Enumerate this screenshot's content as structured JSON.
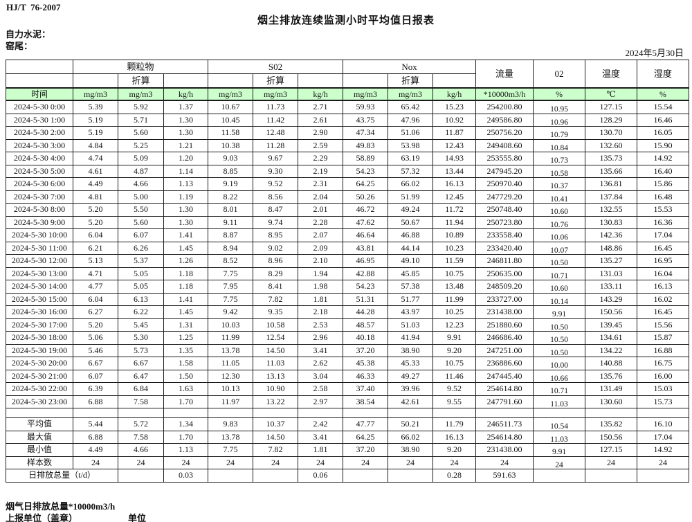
{
  "page": {
    "standard_code": "HJ/T  76-2007",
    "title": "烟尘排放连续监测小时平均值日报表",
    "company": "自力水泥：",
    "station": "窑尾：",
    "date": "2024年5月30日"
  },
  "table": {
    "header": {
      "time": "时间",
      "groups": [
        {
          "name": "颗粒物",
          "sub": "折算",
          "units": [
            "mg/m3",
            "mg/m3",
            "kg/h"
          ]
        },
        {
          "name": "S02",
          "sub": "折算",
          "units": [
            "mg/m3",
            "mg/m3",
            "kg/h"
          ]
        },
        {
          "name": "Nox",
          "sub": "折算",
          "units": [
            "mg/m3",
            "mg/m3",
            "kg/h"
          ]
        }
      ],
      "flow": {
        "name": "流量",
        "unit": "*10000m3/h"
      },
      "o2": {
        "name": "02",
        "unit": "%"
      },
      "temperature": {
        "name": "温度",
        "unit": "℃"
      },
      "humidity": {
        "name": "湿度",
        "unit": "%"
      }
    },
    "rows": [
      {
        "time": "2024-5-30 0:00",
        "values": [
          "5.39",
          "5.92",
          "1.37",
          "10.67",
          "11.73",
          "2.71",
          "59.93",
          "65.42",
          "15.23",
          "254200.80",
          "10.95",
          "127.15",
          "15.54"
        ]
      },
      {
        "time": "2024-5-30 1:00",
        "values": [
          "5.19",
          "5.71",
          "1.30",
          "10.45",
          "11.42",
          "2.61",
          "43.75",
          "47.96",
          "10.92",
          "249586.80",
          "10.96",
          "128.29",
          "16.46"
        ]
      },
      {
        "time": "2024-5-30 2:00",
        "values": [
          "5.19",
          "5.60",
          "1.30",
          "11.58",
          "12.48",
          "2.90",
          "47.34",
          "51.06",
          "11.87",
          "250756.20",
          "10.79",
          "130.70",
          "16.05"
        ]
      },
      {
        "time": "2024-5-30 3:00",
        "values": [
          "4.84",
          "5.25",
          "1.21",
          "10.38",
          "11.28",
          "2.59",
          "49.83",
          "53.98",
          "12.43",
          "249408.60",
          "10.84",
          "132.60",
          "15.90"
        ]
      },
      {
        "time": "2024-5-30 4:00",
        "values": [
          "4.74",
          "5.09",
          "1.20",
          "9.03",
          "9.67",
          "2.29",
          "58.89",
          "63.19",
          "14.93",
          "253555.80",
          "10.73",
          "135.73",
          "14.92"
        ]
      },
      {
        "time": "2024-5-30 5:00",
        "values": [
          "4.61",
          "4.87",
          "1.14",
          "8.85",
          "9.30",
          "2.19",
          "54.23",
          "57.32",
          "13.44",
          "247945.20",
          "10.58",
          "135.66",
          "16.40"
        ]
      },
      {
        "time": "2024-5-30 6:00",
        "values": [
          "4.49",
          "4.66",
          "1.13",
          "9.19",
          "9.52",
          "2.31",
          "64.25",
          "66.02",
          "16.13",
          "250970.40",
          "10.37",
          "136.81",
          "15.86"
        ]
      },
      {
        "time": "2024-5-30 7:00",
        "values": [
          "4.81",
          "5.00",
          "1.19",
          "8.22",
          "8.56",
          "2.04",
          "50.26",
          "51.99",
          "12.45",
          "247729.20",
          "10.41",
          "137.84",
          "16.48"
        ]
      },
      {
        "time": "2024-5-30 8:00",
        "values": [
          "5.20",
          "5.50",
          "1.30",
          "8.01",
          "8.47",
          "2.01",
          "46.72",
          "49.24",
          "11.72",
          "250748.40",
          "10.60",
          "132.55",
          "15.53"
        ]
      },
      {
        "time": "2024-5-30 9:00",
        "values": [
          "5.20",
          "5.60",
          "1.30",
          "9.11",
          "9.74",
          "2.28",
          "47.62",
          "50.67",
          "11.94",
          "250723.80",
          "10.76",
          "130.83",
          "16.36"
        ]
      },
      {
        "time": "2024-5-30 10:00",
        "values": [
          "6.04",
          "6.07",
          "1.41",
          "8.87",
          "8.95",
          "2.07",
          "46.64",
          "46.88",
          "10.89",
          "233558.40",
          "10.06",
          "142.36",
          "17.04"
        ]
      },
      {
        "time": "2024-5-30 11:00",
        "values": [
          "6.21",
          "6.26",
          "1.45",
          "8.94",
          "9.02",
          "2.09",
          "43.81",
          "44.14",
          "10.23",
          "233420.40",
          "10.07",
          "148.86",
          "16.45"
        ]
      },
      {
        "time": "2024-5-30 12:00",
        "values": [
          "5.13",
          "5.37",
          "1.26",
          "8.52",
          "8.96",
          "2.10",
          "46.95",
          "49.10",
          "11.59",
          "246811.80",
          "10.50",
          "135.27",
          "16.95"
        ]
      },
      {
        "time": "2024-5-30 13:00",
        "values": [
          "4.71",
          "5.05",
          "1.18",
          "7.75",
          "8.29",
          "1.94",
          "42.88",
          "45.85",
          "10.75",
          "250635.00",
          "10.71",
          "131.03",
          "16.04"
        ]
      },
      {
        "time": "2024-5-30 14:00",
        "values": [
          "4.77",
          "5.05",
          "1.18",
          "7.95",
          "8.41",
          "1.98",
          "54.23",
          "57.38",
          "13.48",
          "248509.20",
          "10.60",
          "133.11",
          "16.13"
        ]
      },
      {
        "time": "2024-5-30 15:00",
        "values": [
          "6.04",
          "6.13",
          "1.41",
          "7.75",
          "7.82",
          "1.81",
          "51.31",
          "51.77",
          "11.99",
          "233727.00",
          "10.14",
          "143.29",
          "16.02"
        ]
      },
      {
        "time": "2024-5-30 16:00",
        "values": [
          "6.27",
          "6.22",
          "1.45",
          "9.42",
          "9.35",
          "2.18",
          "44.28",
          "43.97",
          "10.25",
          "231438.00",
          "9.91",
          "150.56",
          "16.45"
        ]
      },
      {
        "time": "2024-5-30 17:00",
        "values": [
          "5.20",
          "5.45",
          "1.31",
          "10.03",
          "10.58",
          "2.53",
          "48.57",
          "51.03",
          "12.23",
          "251880.60",
          "10.50",
          "139.45",
          "15.56"
        ]
      },
      {
        "time": "2024-5-30 18:00",
        "values": [
          "5.06",
          "5.30",
          "1.25",
          "11.99",
          "12.54",
          "2.96",
          "40.18",
          "41.94",
          "9.91",
          "246686.40",
          "10.50",
          "134.61",
          "15.87"
        ]
      },
      {
        "time": "2024-5-30 19:00",
        "values": [
          "5.46",
          "5.73",
          "1.35",
          "13.78",
          "14.50",
          "3.41",
          "37.20",
          "38.90",
          "9.20",
          "247251.00",
          "10.50",
          "134.22",
          "16.88"
        ]
      },
      {
        "time": "2024-5-30 20:00",
        "values": [
          "6.67",
          "6.67",
          "1.58",
          "11.05",
          "11.03",
          "2.62",
          "45.38",
          "45.33",
          "10.75",
          "236886.60",
          "10.00",
          "140.88",
          "16.75"
        ]
      },
      {
        "time": "2024-5-30 21:00",
        "values": [
          "6.07",
          "6.47",
          "1.50",
          "12.30",
          "13.13",
          "3.04",
          "46.33",
          "49.27",
          "11.46",
          "247445.40",
          "10.66",
          "135.76",
          "16.00"
        ]
      },
      {
        "time": "2024-5-30 22:00",
        "values": [
          "6.39",
          "6.84",
          "1.63",
          "10.13",
          "10.90",
          "2.58",
          "37.40",
          "39.96",
          "9.52",
          "254614.80",
          "10.71",
          "131.49",
          "15.03"
        ]
      },
      {
        "time": "2024-5-30 23:00",
        "values": [
          "6.88",
          "7.58",
          "1.70",
          "11.97",
          "13.22",
          "2.97",
          "38.54",
          "42.61",
          "9.55",
          "247791.60",
          "11.03",
          "130.60",
          "15.73"
        ]
      }
    ],
    "summary_rows": [
      {
        "label": "平均值",
        "values": [
          "5.44",
          "5.72",
          "1.34",
          "9.83",
          "10.37",
          "2.42",
          "47.77",
          "50.21",
          "11.79",
          "246511.73",
          "10.54",
          "135.82",
          "16.10"
        ]
      },
      {
        "label": "最大值",
        "values": [
          "6.88",
          "7.58",
          "1.70",
          "13.78",
          "14.50",
          "3.41",
          "64.25",
          "66.02",
          "16.13",
          "254614.80",
          "11.03",
          "150.56",
          "17.04"
        ]
      },
      {
        "label": "最小值",
        "values": [
          "4.49",
          "4.66",
          "1.13",
          "7.75",
          "7.82",
          "1.81",
          "37.20",
          "38.90",
          "9.20",
          "231438.00",
          "9.91",
          "127.15",
          "14.92"
        ]
      },
      {
        "label": "样本数",
        "values": [
          "24",
          "24",
          "24",
          "24",
          "24",
          "24",
          "24",
          "24",
          "24",
          "24",
          "24",
          "24",
          "24"
        ]
      }
    ],
    "daily_total_row": {
      "label": "日排放总量（t/d）",
      "values": [
        "",
        "0.03",
        "",
        "",
        "0.06",
        "",
        "",
        "0.28",
        "591.63",
        "",
        "",
        ""
      ]
    }
  },
  "footer": {
    "flue_gas_total": "烟气日排放总量*10000m3/h",
    "reporting_unit": "上报单位（盖章）",
    "unit_label": "单位"
  },
  "colors": {
    "header_green": "#ccffcc",
    "border": "#1a1a1a"
  }
}
